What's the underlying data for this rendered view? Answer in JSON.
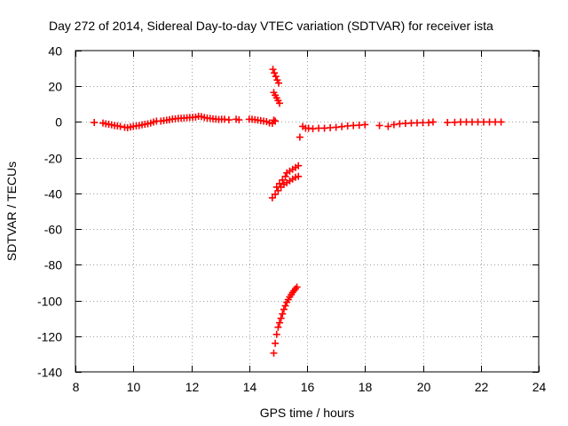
{
  "chart_data": {
    "type": "scatter",
    "title": "Day 272 of 2014, Sidereal Day-to-day VTEC variation (SDTVAR) for receiver ista",
    "xlabel": "GPS time / hours",
    "ylabel": "SDTVAR / TECUs",
    "xlim": [
      8,
      24
    ],
    "ylim": [
      -140,
      40
    ],
    "xticks": [
      8,
      10,
      12,
      14,
      16,
      18,
      20,
      22,
      24
    ],
    "yticks": [
      -140,
      -120,
      -100,
      -80,
      -60,
      -40,
      -20,
      0,
      20,
      40
    ],
    "grid": true,
    "marker": "+",
    "color": "#ff0000",
    "series": [
      {
        "points": [
          [
            8.65,
            -0.3
          ],
          [
            8.95,
            -0.6
          ],
          [
            9.05,
            -1.0
          ],
          [
            9.15,
            -1.3
          ],
          [
            9.25,
            -1.6
          ],
          [
            9.35,
            -2.0
          ],
          [
            9.45,
            -2.2
          ],
          [
            9.55,
            -2.5
          ],
          [
            9.7,
            -3.0
          ],
          [
            9.8,
            -3.2
          ],
          [
            9.9,
            -2.8
          ],
          [
            10.0,
            -2.5
          ],
          [
            10.1,
            -2.2
          ],
          [
            10.2,
            -2.0
          ],
          [
            10.3,
            -1.6
          ],
          [
            10.4,
            -1.3
          ],
          [
            10.5,
            -1.0
          ],
          [
            10.6,
            -0.6
          ],
          [
            10.7,
            0.0
          ],
          [
            10.8,
            0.5
          ],
          [
            10.95,
            0.5
          ],
          [
            11.05,
            0.8
          ],
          [
            11.15,
            1.0
          ],
          [
            11.25,
            1.3
          ],
          [
            11.35,
            1.6
          ],
          [
            11.45,
            1.8
          ],
          [
            11.55,
            2.0
          ],
          [
            11.65,
            2.1
          ],
          [
            11.75,
            2.2
          ],
          [
            11.85,
            2.4
          ],
          [
            11.95,
            2.5
          ],
          [
            12.05,
            2.6
          ],
          [
            12.15,
            2.7
          ],
          [
            12.25,
            3.2
          ],
          [
            12.35,
            3.0
          ],
          [
            12.45,
            2.5
          ],
          [
            12.55,
            2.2
          ],
          [
            12.65,
            2.0
          ],
          [
            12.75,
            1.8
          ],
          [
            12.85,
            1.6
          ],
          [
            12.95,
            1.4
          ],
          [
            13.05,
            1.5
          ],
          [
            13.15,
            1.5
          ],
          [
            13.3,
            1.2
          ],
          [
            13.55,
            1.5
          ],
          [
            13.65,
            1.2
          ],
          [
            14.0,
            1.5
          ],
          [
            14.1,
            1.5
          ],
          [
            14.2,
            1.3
          ],
          [
            14.3,
            1.0
          ],
          [
            14.4,
            0.8
          ],
          [
            14.5,
            0.5
          ],
          [
            14.6,
            0.2
          ],
          [
            14.7,
            -0.5
          ],
          [
            14.8,
            -0.8
          ],
          [
            14.85,
            1.0
          ],
          [
            14.9,
            0.5
          ],
          [
            14.82,
            29.5
          ],
          [
            14.87,
            27.5
          ],
          [
            14.92,
            25.5
          ],
          [
            14.97,
            23.5
          ],
          [
            15.02,
            21.8
          ],
          [
            14.85,
            16.5
          ],
          [
            14.9,
            15.0
          ],
          [
            14.95,
            13.5
          ],
          [
            15.0,
            12.0
          ],
          [
            15.05,
            10.5
          ],
          [
            14.8,
            -42.5
          ],
          [
            14.9,
            -40.5
          ],
          [
            15.0,
            -38.5
          ],
          [
            15.1,
            -36.5
          ],
          [
            15.2,
            -35.0
          ],
          [
            15.3,
            -34.0
          ],
          [
            15.4,
            -33.0
          ],
          [
            15.5,
            -32.0
          ],
          [
            15.6,
            -31.0
          ],
          [
            15.7,
            -30.5
          ],
          [
            14.95,
            -36.5
          ],
          [
            15.05,
            -34.5
          ],
          [
            15.15,
            -32.5
          ],
          [
            15.25,
            -30.5
          ],
          [
            15.3,
            -28.5
          ],
          [
            15.4,
            -27.5
          ],
          [
            15.5,
            -26.5
          ],
          [
            15.6,
            -25.5
          ],
          [
            15.7,
            -24.5
          ],
          [
            14.85,
            -129.5
          ],
          [
            14.9,
            -124.0
          ],
          [
            14.95,
            -119.0
          ],
          [
            15.0,
            -115.0
          ],
          [
            15.05,
            -112.5
          ],
          [
            15.1,
            -110.0
          ],
          [
            15.15,
            -107.5
          ],
          [
            15.2,
            -105.0
          ],
          [
            15.25,
            -103.0
          ],
          [
            15.3,
            -101.0
          ],
          [
            15.35,
            -99.5
          ],
          [
            15.4,
            -98.0
          ],
          [
            15.45,
            -96.8
          ],
          [
            15.5,
            -95.5
          ],
          [
            15.55,
            -94.5
          ],
          [
            15.6,
            -93.5
          ],
          [
            15.65,
            -92.5
          ],
          [
            15.75,
            -8.5
          ],
          [
            15.85,
            -2.5
          ],
          [
            15.95,
            -3.5
          ],
          [
            16.05,
            -3.5
          ],
          [
            16.2,
            -3.8
          ],
          [
            16.4,
            -3.5
          ],
          [
            16.6,
            -3.5
          ],
          [
            16.8,
            -3.2
          ],
          [
            17.0,
            -3.0
          ],
          [
            17.2,
            -2.6
          ],
          [
            17.4,
            -2.2
          ],
          [
            17.6,
            -2.0
          ],
          [
            17.8,
            -1.8
          ],
          [
            18.0,
            -1.5
          ],
          [
            18.5,
            -2.0
          ],
          [
            18.8,
            -2.5
          ],
          [
            19.0,
            -1.5
          ],
          [
            19.2,
            -1.0
          ],
          [
            19.4,
            -0.8
          ],
          [
            19.6,
            -0.6
          ],
          [
            19.8,
            -0.5
          ],
          [
            20.0,
            -0.4
          ],
          [
            20.2,
            -0.4
          ],
          [
            20.35,
            0.0
          ],
          [
            20.85,
            -0.3
          ],
          [
            21.1,
            -0.2
          ],
          [
            21.3,
            0.0
          ],
          [
            21.5,
            0.0
          ],
          [
            21.7,
            0.0
          ],
          [
            21.9,
            0.0
          ],
          [
            22.1,
            0.0
          ],
          [
            22.3,
            0.0
          ],
          [
            22.5,
            0.0
          ],
          [
            22.7,
            0.0
          ]
        ]
      }
    ]
  }
}
